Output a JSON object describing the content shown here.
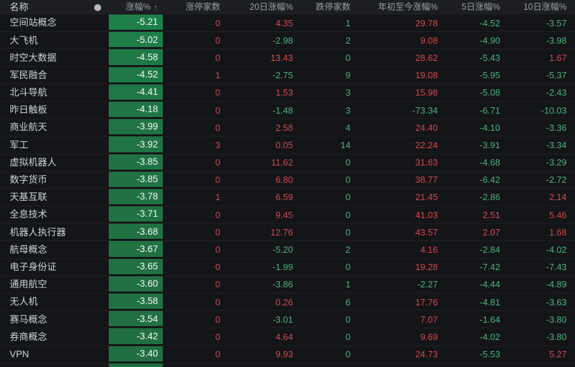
{
  "header": {
    "name": "名称",
    "dot_icon": "circle-marker",
    "pct": "涨幅%",
    "sort_arrow": "↑",
    "limit_up": "涨停家数",
    "d20": "20日涨幅%",
    "limit_down": "跌停家数",
    "ytd": "年初至今涨幅%",
    "d5": "5日涨幅%",
    "d10": "10日涨幅%"
  },
  "colors": {
    "up_text": "#d5484b",
    "down_text": "#4cb378",
    "green_cell_strong": "#1e7f49",
    "green_cell_weak": "#216e42",
    "header_bg": "#1c1e21",
    "row_bg": "#131518"
  },
  "rows": [
    {
      "name": "空间站概念",
      "pct": "-5.21",
      "limit_up": "0",
      "d20": "4.35",
      "limit_down": "1",
      "ytd": "29.78",
      "d5": "-4.52",
      "d10": "-3.57"
    },
    {
      "name": "大飞机",
      "pct": "-5.02",
      "limit_up": "0",
      "d20": "-2.98",
      "limit_down": "2",
      "ytd": "9.08",
      "d5": "-4.90",
      "d10": "-3.98"
    },
    {
      "name": "时空大数据",
      "pct": "-4.58",
      "limit_up": "0",
      "d20": "13.43",
      "limit_down": "0",
      "ytd": "28.62",
      "d5": "-5.43",
      "d10": "1.67"
    },
    {
      "name": "军民融合",
      "pct": "-4.52",
      "limit_up": "1",
      "d20": "-2.75",
      "limit_down": "9",
      "ytd": "19.08",
      "d5": "-5.95",
      "d10": "-5.37"
    },
    {
      "name": "北斗导航",
      "pct": "-4.41",
      "limit_up": "0",
      "d20": "1.53",
      "limit_down": "3",
      "ytd": "15.98",
      "d5": "-5.08",
      "d10": "-2.43"
    },
    {
      "name": "昨日触板",
      "pct": "-4.18",
      "limit_up": "0",
      "d20": "-1.48",
      "limit_down": "3",
      "ytd": "-73.34",
      "d5": "-6.71",
      "d10": "-10.03"
    },
    {
      "name": "商业航天",
      "pct": "-3.99",
      "limit_up": "0",
      "d20": "2.58",
      "limit_down": "4",
      "ytd": "24.40",
      "d5": "-4.10",
      "d10": "-3.36"
    },
    {
      "name": "军工",
      "pct": "-3.92",
      "limit_up": "3",
      "d20": "0.05",
      "limit_down": "14",
      "ytd": "22.24",
      "d5": "-3.91",
      "d10": "-3.34"
    },
    {
      "name": "虚拟机器人",
      "pct": "-3.85",
      "limit_up": "0",
      "d20": "11.62",
      "limit_down": "0",
      "ytd": "31.63",
      "d5": "-4.68",
      "d10": "-3.29"
    },
    {
      "name": "数字货币",
      "pct": "-3.85",
      "limit_up": "0",
      "d20": "6.80",
      "limit_down": "0",
      "ytd": "38.77",
      "d5": "-6.42",
      "d10": "-2.72"
    },
    {
      "name": "天基互联",
      "pct": "-3.78",
      "limit_up": "1",
      "d20": "6.59",
      "limit_down": "0",
      "ytd": "21.45",
      "d5": "-2.86",
      "d10": "2.14"
    },
    {
      "name": "全息技术",
      "pct": "-3.71",
      "limit_up": "0",
      "d20": "9.45",
      "limit_down": "0",
      "ytd": "41.03",
      "d5": "2.51",
      "d10": "5.46"
    },
    {
      "name": "机器人执行器",
      "pct": "-3.68",
      "limit_up": "0",
      "d20": "12.76",
      "limit_down": "0",
      "ytd": "43.57",
      "d5": "2.07",
      "d10": "1.68"
    },
    {
      "name": "航母概念",
      "pct": "-3.67",
      "limit_up": "0",
      "d20": "-5.20",
      "limit_down": "2",
      "ytd": "4.16",
      "d5": "-2.84",
      "d10": "-4.02"
    },
    {
      "name": "电子身份证",
      "pct": "-3.65",
      "limit_up": "0",
      "d20": "-1.99",
      "limit_down": "0",
      "ytd": "19.28",
      "d5": "-7.42",
      "d10": "-7.43"
    },
    {
      "name": "通用航空",
      "pct": "-3.60",
      "limit_up": "0",
      "d20": "-3.86",
      "limit_down": "1",
      "ytd": "-2.27",
      "d5": "-4.44",
      "d10": "-4.89"
    },
    {
      "name": "无人机",
      "pct": "-3.58",
      "limit_up": "0",
      "d20": "0.26",
      "limit_down": "6",
      "ytd": "17.76",
      "d5": "-4.81",
      "d10": "-3.63"
    },
    {
      "name": "赛马概念",
      "pct": "-3.54",
      "limit_up": "0",
      "d20": "-3.01",
      "limit_down": "0",
      "ytd": "7.07",
      "d5": "-1.64",
      "d10": "-3.80"
    },
    {
      "name": "券商概念",
      "pct": "-3.42",
      "limit_up": "0",
      "d20": "4.64",
      "limit_down": "0",
      "ytd": "9.69",
      "d5": "-4.02",
      "d10": "-3.80"
    },
    {
      "name": "VPN",
      "pct": "-3.40",
      "limit_up": "0",
      "d20": "9.93",
      "limit_down": "0",
      "ytd": "24.73",
      "d5": "-5.53",
      "d10": "5.27"
    }
  ],
  "partial_row_visible": true
}
